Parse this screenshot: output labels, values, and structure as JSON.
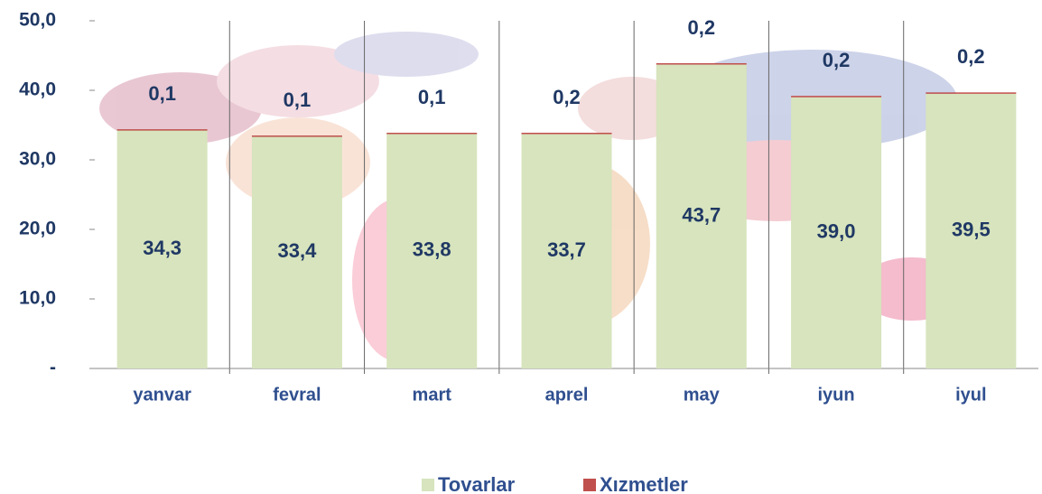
{
  "chart_data": {
    "type": "stacked_bar",
    "categories": [
      "yanvar",
      "fevral",
      "mart",
      "aprel",
      "may",
      "iyun",
      "iyul"
    ],
    "series": [
      {
        "name": "Tovarlar",
        "color": "#d7e4bd",
        "values": [
          34.3,
          33.4,
          33.8,
          33.7,
          43.7,
          39.0,
          39.5
        ],
        "value_labels": [
          "34,3",
          "33,4",
          "33,8",
          "33,7",
          "43,7",
          "39,0",
          "39,5"
        ]
      },
      {
        "name": "Xızmetler",
        "color": "#c0504d",
        "values": [
          0.1,
          0.1,
          0.1,
          0.2,
          0.2,
          0.2,
          0.2
        ],
        "value_labels": [
          "0,1",
          "0,1",
          "0,1",
          "0,2",
          "0,2",
          "0,2",
          "0,2"
        ]
      }
    ],
    "ylim": [
      0,
      50
    ],
    "yticks": [
      {
        "value": 0,
        "label": "-"
      },
      {
        "value": 10,
        "label": "10,0"
      },
      {
        "value": 20,
        "label": "20,0"
      },
      {
        "value": 30,
        "label": "30,0"
      },
      {
        "value": 40,
        "label": "40,0"
      },
      {
        "value": 50,
        "label": "50,0"
      }
    ],
    "legend": "bottom"
  }
}
